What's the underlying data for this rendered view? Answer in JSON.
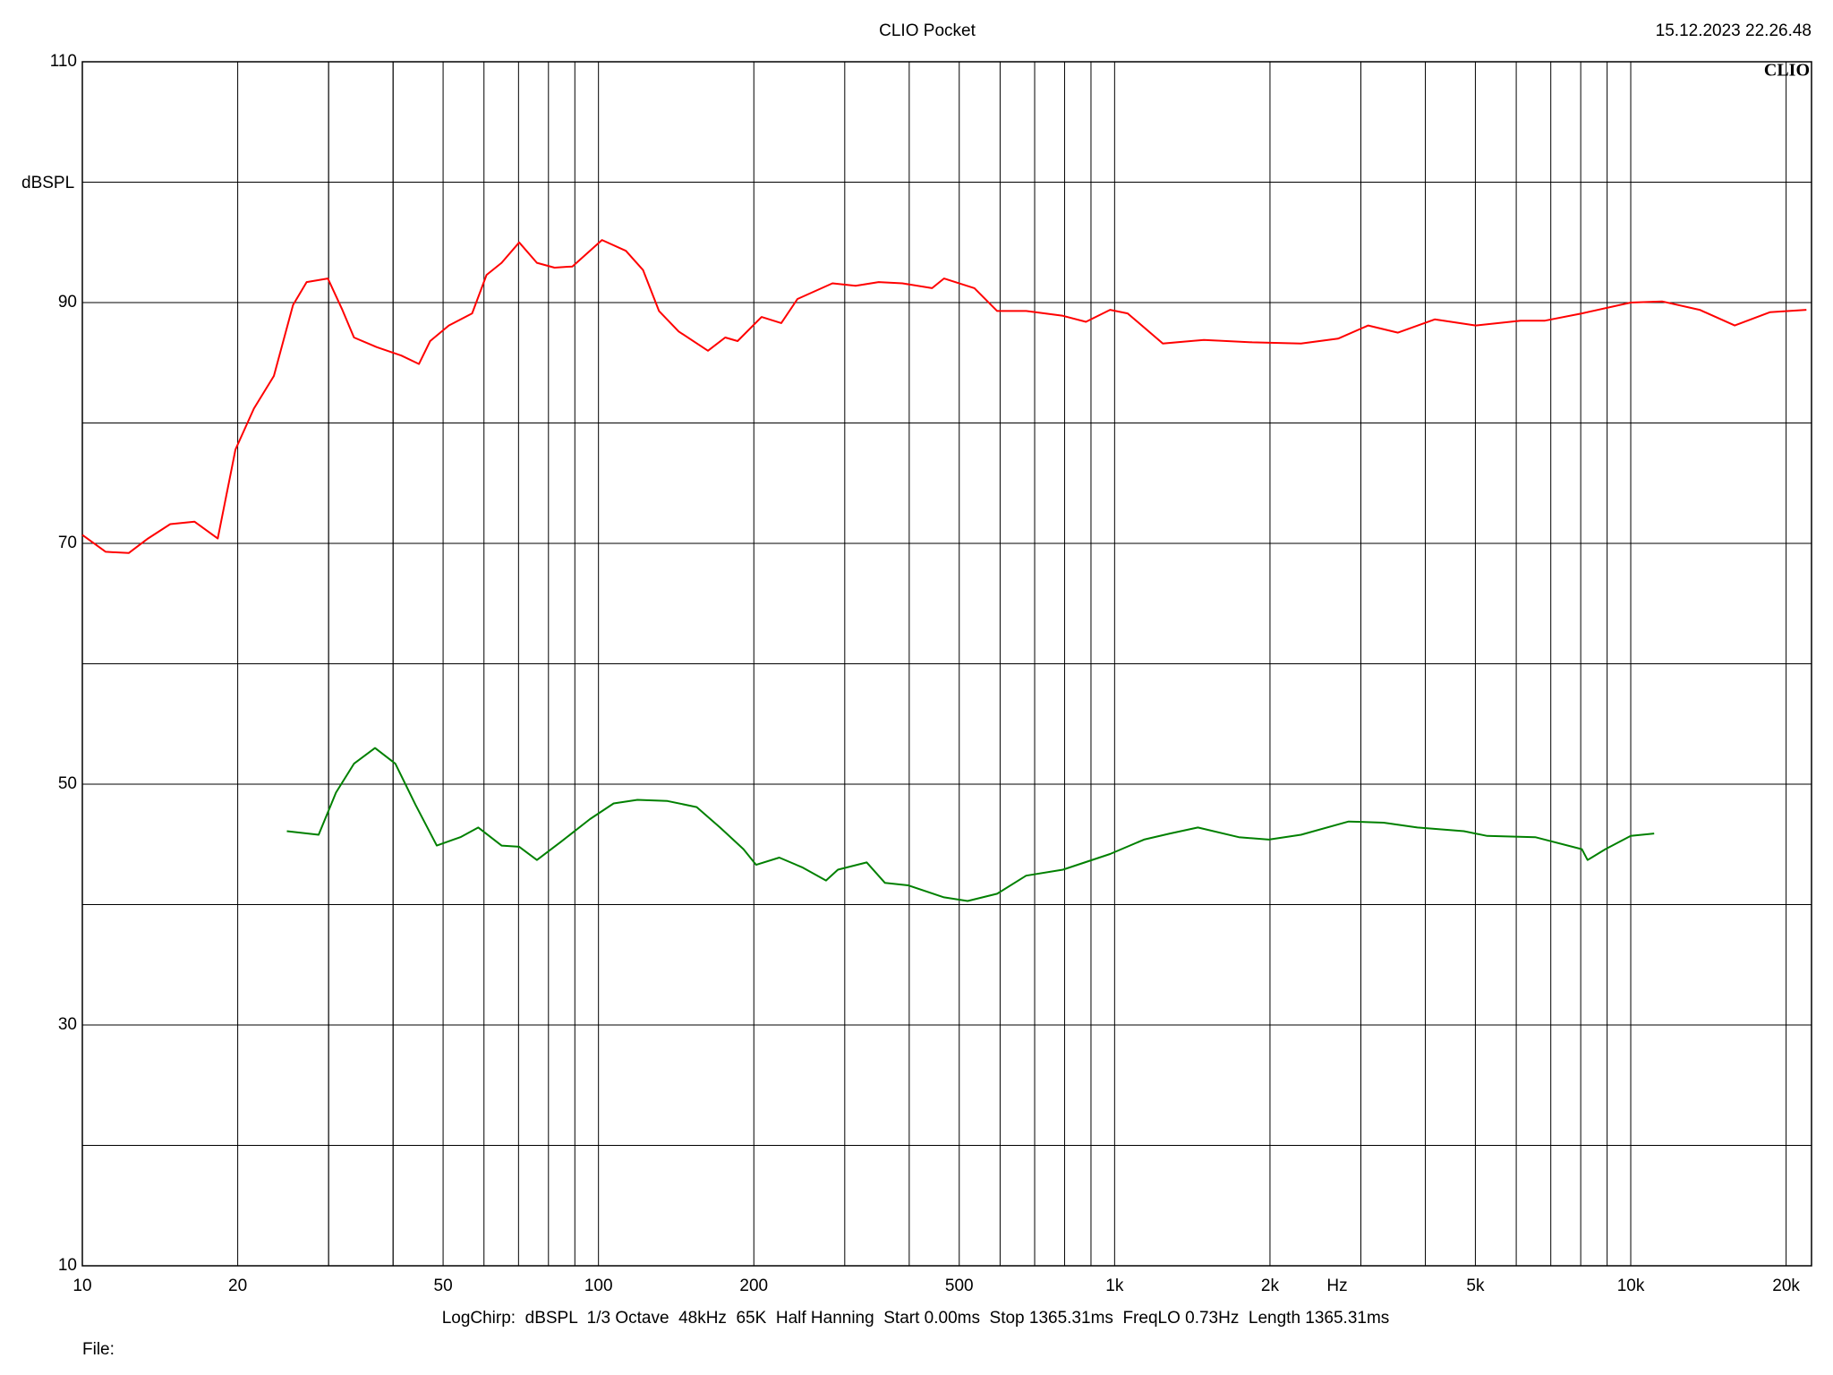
{
  "chart_data": {
    "type": "line",
    "title": "CLIO Pocket",
    "timestamp": "15.12.2023 22.26.48",
    "brand": "CLIO",
    "y_label": "dBSPL",
    "x_unit": "Hz",
    "footer": "LogChirp:  dBSPL  1/3 Octave  48kHz  65K  Half Hanning  Start 0.00ms  Stop 1365.31ms  FreqLO 0.73Hz  Length 1365.31ms",
    "file_label": "File:",
    "x_log": true,
    "grid": true,
    "xlim": [
      10,
      22400
    ],
    "ylim": [
      10,
      110
    ],
    "xticks": [
      10,
      20,
      50,
      100,
      200,
      500,
      {
        "value": 1000,
        "label": "1k"
      },
      {
        "value": 2000,
        "label": "2k"
      },
      {
        "value": 5000,
        "label": "5k"
      },
      {
        "value": 10000,
        "label": "10k"
      },
      {
        "value": 20000,
        "label": "20k"
      }
    ],
    "minor_xgrid": [
      30,
      40,
      60,
      70,
      80,
      90,
      300,
      400,
      600,
      700,
      800,
      900,
      3000,
      4000,
      6000,
      7000,
      8000,
      9000,
      30,
      40
    ],
    "yticks": [
      10,
      30,
      50,
      70,
      90,
      110
    ],
    "minor_ygrid": [
      20,
      40,
      60,
      80,
      100
    ],
    "series": [
      {
        "color": "#ff0000",
        "x": [
          10,
          11.1,
          12.3,
          13.4,
          14.8,
          16.5,
          18.3,
          19.8,
          21.5,
          23.5,
          25.6,
          27.2,
          29.9,
          31.9,
          33.6,
          37.2,
          41.5,
          44.9,
          47.2,
          51.3,
          56.9,
          60.7,
          64.9,
          70.2,
          76,
          82.2,
          89,
          101.6,
          113,
          122,
          131,
          143,
          163,
          176,
          186,
          207,
          226,
          243,
          284,
          315,
          349,
          388,
          443,
          467,
          535,
          592,
          674,
          794,
          880,
          980,
          1060,
          1240,
          1489,
          1848,
          2297,
          2710,
          3100,
          3540,
          4170,
          5010,
          6120,
          6820,
          8040,
          10000,
          11500,
          13600,
          15900,
          18600,
          21900
        ],
        "values": [
          70.7,
          69.3,
          69.2,
          70.4,
          71.6,
          71.8,
          70.4,
          77.8,
          81.2,
          83.9,
          89.8,
          91.7,
          92.0,
          89.4,
          87.1,
          86.3,
          85.6,
          84.9,
          86.8,
          88.1,
          89.1,
          92.3,
          93.3,
          95.0,
          93.3,
          92.9,
          93.0,
          95.2,
          94.3,
          92.7,
          89.3,
          87.6,
          86.0,
          87.1,
          86.8,
          88.8,
          88.3,
          90.3,
          91.6,
          91.4,
          91.7,
          91.6,
          91.2,
          92.0,
          91.2,
          89.3,
          89.3,
          88.9,
          88.4,
          89.4,
          89.1,
          86.6,
          86.9,
          86.7,
          86.6,
          87.0,
          88.1,
          87.5,
          88.6,
          88.1,
          88.5,
          88.5,
          89.1,
          90.0,
          90.1,
          89.4,
          88.1,
          89.2,
          89.4
        ]
      },
      {
        "color": "#008000",
        "x": [
          24.9,
          28.7,
          31,
          33.6,
          36.9,
          40.4,
          44.2,
          48.6,
          54,
          58.5,
          64.9,
          70.2,
          76,
          84.5,
          96.3,
          107,
          119,
          136,
          155,
          172,
          191,
          202,
          224,
          248,
          276,
          291,
          331,
          359,
          398,
          467,
          519,
          592,
          674,
          794,
          980,
          1140,
          1280,
          1450,
          1740,
          1990,
          2297,
          2840,
          3320,
          3860,
          4750,
          5270,
          6530,
          8040,
          8250,
          8930,
          10000,
          11100
        ],
        "values": [
          46.1,
          45.8,
          49.3,
          51.7,
          53.0,
          51.7,
          48.3,
          44.9,
          45.6,
          46.4,
          44.9,
          44.8,
          43.7,
          45.2,
          47.1,
          48.4,
          48.7,
          48.6,
          48.1,
          46.4,
          44.6,
          43.3,
          43.9,
          43.1,
          42.0,
          42.9,
          43.5,
          41.8,
          41.6,
          40.6,
          40.3,
          40.9,
          42.4,
          42.9,
          44.2,
          45.4,
          45.9,
          46.4,
          45.6,
          45.4,
          45.8,
          46.9,
          46.8,
          46.4,
          46.1,
          45.7,
          45.6,
          44.6,
          43.7,
          44.6,
          45.7,
          45.9
        ]
      }
    ]
  }
}
